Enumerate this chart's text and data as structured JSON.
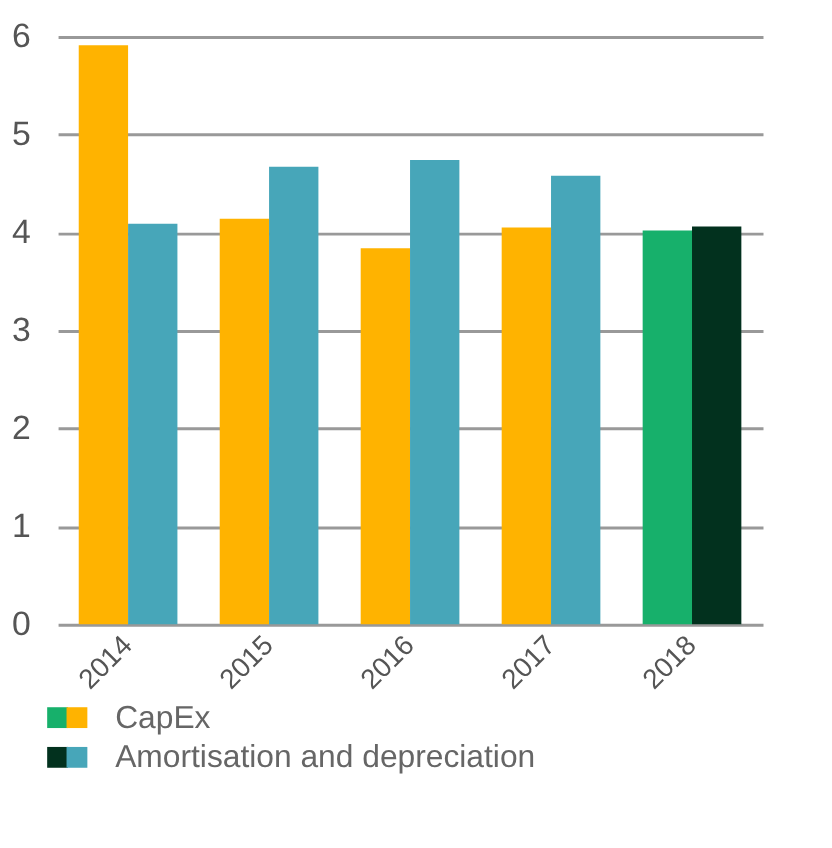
{
  "chart_data": {
    "type": "bar",
    "categories": [
      "2014",
      "2015",
      "2016",
      "2017",
      "2018"
    ],
    "series": [
      {
        "name": "CapEx",
        "colors": [
          "#ffb300",
          "#ffb300",
          "#ffb300",
          "#ffb300",
          "#17b06b"
        ],
        "values": [
          5.91,
          4.14,
          3.84,
          4.05,
          4.02
        ]
      },
      {
        "name": "Amortisation and depreciation",
        "colors": [
          "#47a6b9",
          "#47a6b9",
          "#47a6b9",
          "#47a6b9",
          "#02311e"
        ],
        "values": [
          4.09,
          4.67,
          4.74,
          4.58,
          4.06
        ]
      }
    ],
    "ylim": [
      0,
      6
    ],
    "yticks": [
      0,
      1,
      2,
      3,
      4,
      5,
      6
    ],
    "grid": "y",
    "legend": "bottom left"
  }
}
